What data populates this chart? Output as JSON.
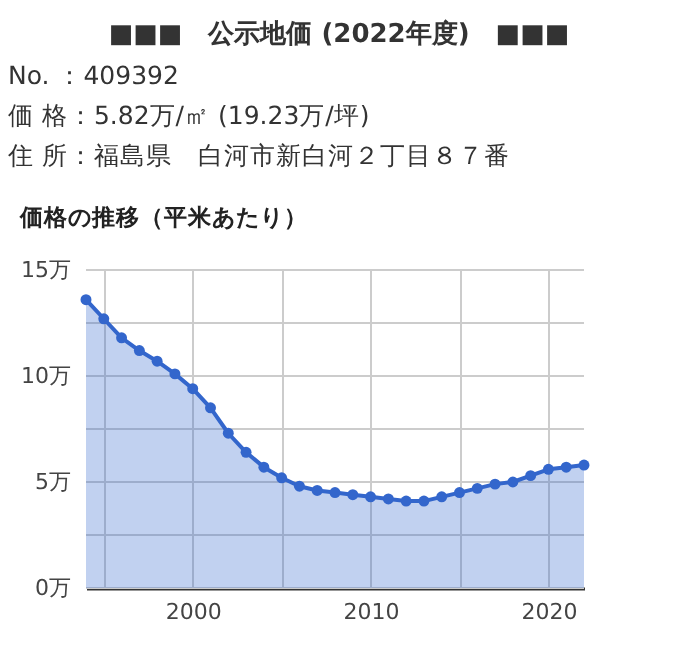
{
  "chart_data": {
    "type": "area",
    "title": "■■■　公示地価 (2022年度)　■■■",
    "subtitle": "価格の推移（平米あたり）",
    "annotations": [
      "No. ：409392",
      "価 格：5.82万/㎡ (19.23万/坪)",
      "住 所：福島県　白河市新白河２丁目８７番"
    ],
    "x": [
      1994,
      1995,
      1996,
      1997,
      1998,
      1999,
      2000,
      2001,
      2002,
      2003,
      2004,
      2005,
      2006,
      2007,
      2008,
      2009,
      2010,
      2011,
      2012,
      2013,
      2014,
      2015,
      2016,
      2017,
      2018,
      2019,
      2020,
      2021,
      2022
    ],
    "series": [
      {
        "color": "#3366cc",
        "values": [
          13.6,
          12.7,
          11.8,
          11.2,
          10.7,
          10.1,
          9.4,
          8.5,
          7.3,
          6.4,
          5.7,
          5.2,
          4.8,
          4.6,
          4.5,
          4.4,
          4.3,
          4.2,
          4.1,
          4.1,
          4.3,
          4.5,
          4.7,
          4.9,
          5.0,
          5.3,
          5.6,
          5.7,
          5.8
        ]
      }
    ],
    "xlim": [
      1994,
      2022
    ],
    "xticks": [
      {
        "value": 1995,
        "label": null
      },
      2000,
      {
        "value": 2005,
        "label": null
      },
      2010,
      {
        "value": 2015,
        "label": null
      },
      2020
    ],
    "ylim": [
      0,
      15
    ],
    "yticks": [
      {
        "value": 0,
        "label": "0万"
      },
      {
        "value": 2.5,
        "label": null
      },
      {
        "value": 5,
        "label": "5万"
      },
      {
        "value": 7.5,
        "label": null
      },
      {
        "value": 10,
        "label": "10万"
      },
      {
        "value": 12.5,
        "label": null
      },
      {
        "value": 15,
        "label": "15万"
      }
    ],
    "grid": true,
    "marker": "circle",
    "line_style": "solid"
  }
}
